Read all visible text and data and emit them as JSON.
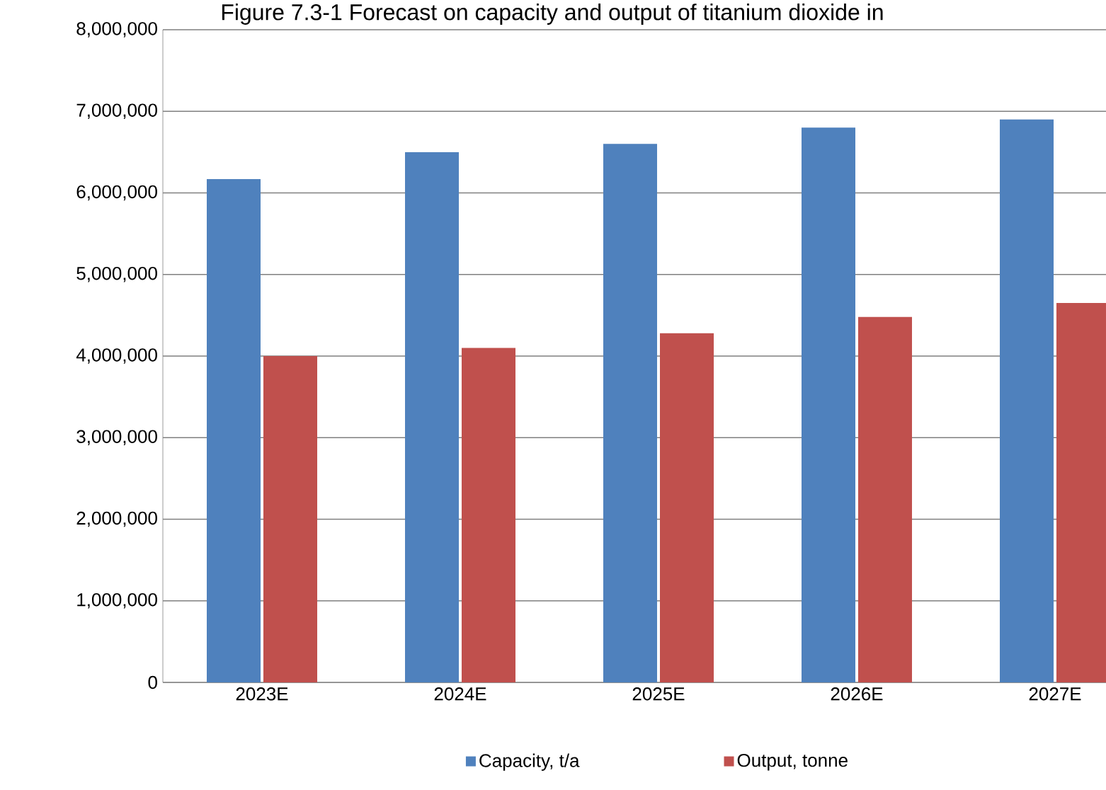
{
  "chart_data": {
    "type": "bar",
    "title": "Figure 7.3-1 Forecast on capacity and output of titanium dioxide in",
    "categories": [
      "2023E",
      "2024E",
      "2025E",
      "2026E",
      "2027E"
    ],
    "series": [
      {
        "name": "Capacity, t/a",
        "color": "#4f81bd",
        "values": [
          6170000,
          6500000,
          6600000,
          6800000,
          6900000
        ]
      },
      {
        "name": "Output, tonne",
        "color": "#c0504d",
        "values": [
          4000000,
          4100000,
          4280000,
          4480000,
          4650000
        ]
      }
    ],
    "ylim": [
      0,
      8000000
    ],
    "yticks": [
      {
        "value": 0,
        "label": "0"
      },
      {
        "value": 1000000,
        "label": "1,000,000"
      },
      {
        "value": 2000000,
        "label": "2,000,000"
      },
      {
        "value": 3000000,
        "label": "3,000,000"
      },
      {
        "value": 4000000,
        "label": "4,000,000"
      },
      {
        "value": 5000000,
        "label": "5,000,000"
      },
      {
        "value": 6000000,
        "label": "6,000,000"
      },
      {
        "value": 7000000,
        "label": "7,000,000"
      },
      {
        "value": 8000000,
        "label": "8,000,000"
      }
    ],
    "grid": "y",
    "legend": "bottom"
  }
}
